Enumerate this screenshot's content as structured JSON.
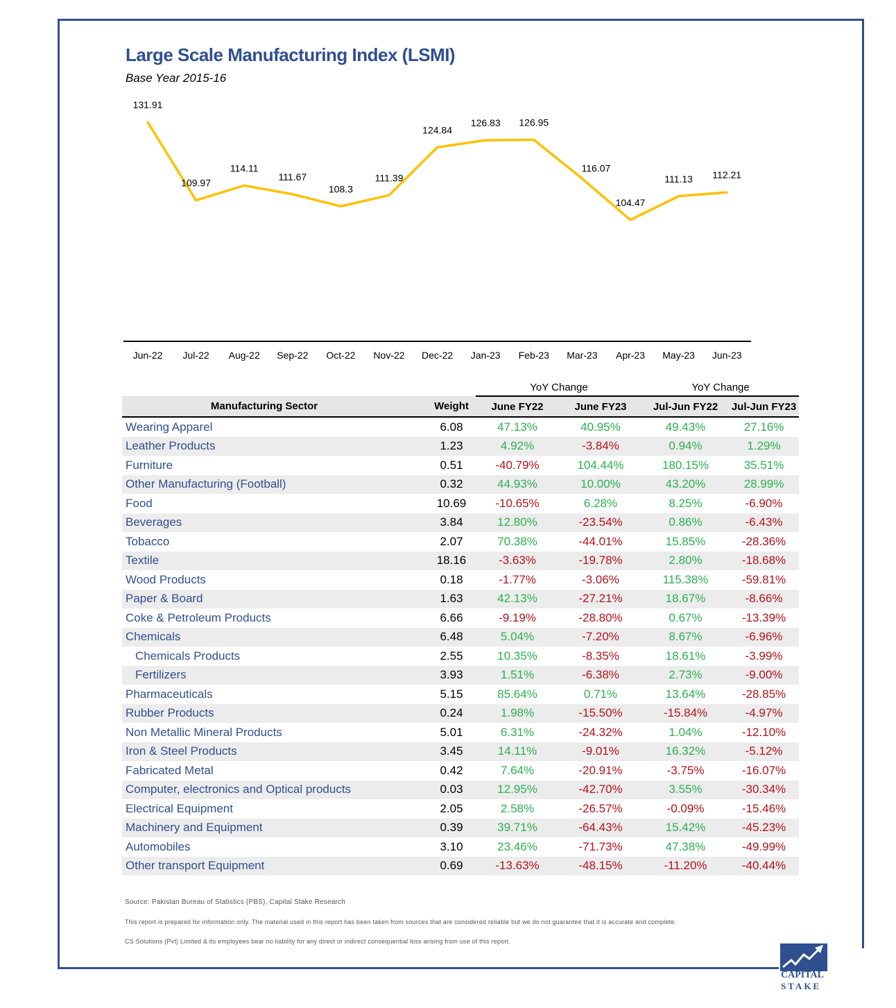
{
  "header": {
    "title": "Large Scale Manufacturing Index (LSMI)",
    "subtitle": "Base Year 2015-16"
  },
  "chart_data": {
    "type": "line",
    "title": "Large Scale Manufacturing Index (LSMI)",
    "subtitle": "Base Year 2015-16",
    "categories": [
      "Jun-22",
      "Jul-22",
      "Aug-22",
      "Sep-22",
      "Oct-22",
      "Nov-22",
      "Dec-22",
      "Jan-23",
      "Feb-23",
      "Mar-23",
      "Apr-23",
      "May-23",
      "Jun-23"
    ],
    "values": [
      131.91,
      109.97,
      114.11,
      111.67,
      108.3,
      111.39,
      124.84,
      126.83,
      126.95,
      116.07,
      104.47,
      111.13,
      112.21
    ],
    "labels": [
      "131.91",
      "109.97",
      "114.11",
      "111.67",
      "108.3",
      "111.39",
      "124.84",
      "126.83",
      "126.95",
      "116.07",
      "104.47",
      "111.13",
      "112.21"
    ],
    "line_color": "#ffc000",
    "grid": false,
    "legend": "none"
  },
  "table": {
    "group_headers": {
      "yoy_1": "YoY Change",
      "yoy_2": "YoY Change"
    },
    "columns": [
      "Manufacturing Sector",
      "Weight",
      "June FY22",
      "June FY23",
      "Jul-Jun FY22",
      "Jul-Jun FY23"
    ],
    "rows": [
      {
        "sector": "Wearing Apparel",
        "weight": "6.08",
        "c1": "47.13%",
        "c2": "40.95%",
        "c3": "49.43%",
        "c4": "27.16%"
      },
      {
        "sector": "Leather Products",
        "weight": "1.23",
        "c1": "4.92%",
        "c2": "-3.84%",
        "c3": "0.94%",
        "c4": "1.29%"
      },
      {
        "sector": "Furniture",
        "weight": "0.51",
        "c1": "-40.79%",
        "c2": "104.44%",
        "c3": "180.15%",
        "c4": "35.51%"
      },
      {
        "sector": "Other Manufacturing (Football)",
        "weight": "0.32",
        "c1": "44.93%",
        "c2": "10.00%",
        "c3": "43.20%",
        "c4": "28.99%"
      },
      {
        "sector": "Food",
        "weight": "10.69",
        "c1": "-10.65%",
        "c2": "6.28%",
        "c3": "8.25%",
        "c4": "-6.90%"
      },
      {
        "sector": "Beverages",
        "weight": "3.84",
        "c1": "12.80%",
        "c2": "-23.54%",
        "c3": "0.86%",
        "c4": "-6.43%"
      },
      {
        "sector": "Tobacco",
        "weight": "2.07",
        "c1": "70.38%",
        "c2": "-44.01%",
        "c3": "15.85%",
        "c4": "-28.36%"
      },
      {
        "sector": "Textile",
        "weight": "18.16",
        "c1": "-3.63%",
        "c2": "-19.78%",
        "c3": "2.80%",
        "c4": "-18.68%"
      },
      {
        "sector": "Wood Products",
        "weight": "0.18",
        "c1": "-1.77%",
        "c2": "-3.06%",
        "c3": "115.38%",
        "c4": "-59.81%"
      },
      {
        "sector": "Paper & Board",
        "weight": "1.63",
        "c1": "42.13%",
        "c2": "-27.21%",
        "c3": "18.67%",
        "c4": "-8.66%"
      },
      {
        "sector": "Coke & Petroleum Products",
        "weight": "6.66",
        "c1": "-9.19%",
        "c2": "-28.80%",
        "c3": "0.67%",
        "c4": "-13.39%"
      },
      {
        "sector": "Chemicals",
        "weight": "6.48",
        "c1": "5.04%",
        "c2": "-7.20%",
        "c3": "8.67%",
        "c4": "-6.96%"
      },
      {
        "sector": "Chemicals Products",
        "weight": "2.55",
        "c1": "10.35%",
        "c2": "-8.35%",
        "c3": "18.61%",
        "c4": "-3.99%",
        "sub": true
      },
      {
        "sector": "Fertilizers",
        "weight": "3.93",
        "c1": "1.51%",
        "c2": "-6.38%",
        "c3": "2.73%",
        "c4": "-9.00%",
        "sub": true
      },
      {
        "sector": "Pharmaceuticals",
        "weight": "5.15",
        "c1": "85.64%",
        "c2": "0.71%",
        "c3": "13.64%",
        "c4": "-28.85%"
      },
      {
        "sector": "Rubber Products",
        "weight": "0.24",
        "c1": "1.98%",
        "c2": "-15.50%",
        "c3": "-15.84%",
        "c4": "-4.97%"
      },
      {
        "sector": "Non Metallic Mineral Products",
        "weight": "5.01",
        "c1": "6.31%",
        "c2": "-24.32%",
        "c3": "1.04%",
        "c4": "-12.10%"
      },
      {
        "sector": "Iron & Steel Products",
        "weight": "3.45",
        "c1": "14.11%",
        "c2": "-9.01%",
        "c3": "16.32%",
        "c4": "-5.12%"
      },
      {
        "sector": "Fabricated Metal",
        "weight": "0.42",
        "c1": "7.64%",
        "c2": "-20.91%",
        "c3": "-3.75%",
        "c4": "-16.07%"
      },
      {
        "sector": "Computer, electronics and Optical products",
        "weight": "0.03",
        "c1": "12.95%",
        "c2": "-42.70%",
        "c3": "3.55%",
        "c4": "-30.34%"
      },
      {
        "sector": "Electrical Equipment",
        "weight": "2.05",
        "c1": "2.58%",
        "c2": "-26.57%",
        "c3": "-0.09%",
        "c4": "-15.46%"
      },
      {
        "sector": "Machinery and Equipment",
        "weight": "0.39",
        "c1": "39.71%",
        "c2": "-64.43%",
        "c3": "15.42%",
        "c4": "-45.23%"
      },
      {
        "sector": "Automobiles",
        "weight": "3.10",
        "c1": "23.46%",
        "c2": "-71.73%",
        "c3": "47.38%",
        "c4": "-49.99%"
      },
      {
        "sector": "Other transport Equipment",
        "weight": "0.69",
        "c1": "-13.63%",
        "c2": "-48.15%",
        "c3": "-11.20%",
        "c4": "-40.44%"
      }
    ],
    "colors": {
      "positive": "#2bb04f",
      "negative": "#b3121b",
      "sector": "#2f4f8f"
    }
  },
  "footer": {
    "source": "Source: Pakistan Bureau of Statistics (PBS), Capital Stake Research",
    "disclaimer1": "This report is prepared for information only. The material used in this report has been taken from sources that are considered reliable but we do not guarantee that it is accurate and complete.",
    "disclaimer2": "CS Solutions (Pvt) Limited & its employees bear no liability for any direct or indirect consequential loss arising from use of this report."
  },
  "logo": {
    "line1": "CAPITAL",
    "line2": "STAKE",
    "icon": "rising-chart-logo-icon"
  },
  "brand_color": "#2f4f8f"
}
